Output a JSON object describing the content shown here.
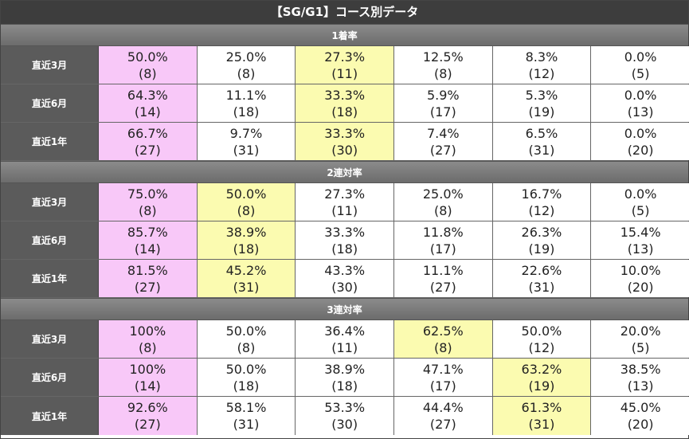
{
  "title": "【SG/G1】コース別データ",
  "sections": [
    {
      "header": "1着率",
      "rows": [
        {
          "label": "直近3月",
          "cells": [
            {
              "pct": "50.0%",
              "n": "(8)",
              "hl": "pink"
            },
            {
              "pct": "25.0%",
              "n": "(8)",
              "hl": ""
            },
            {
              "pct": "27.3%",
              "n": "(11)",
              "hl": "yellow"
            },
            {
              "pct": "12.5%",
              "n": "(8)",
              "hl": ""
            },
            {
              "pct": "8.3%",
              "n": "(12)",
              "hl": ""
            },
            {
              "pct": "0.0%",
              "n": "(5)",
              "hl": ""
            }
          ]
        },
        {
          "label": "直近6月",
          "cells": [
            {
              "pct": "64.3%",
              "n": "(14)",
              "hl": "pink"
            },
            {
              "pct": "11.1%",
              "n": "(18)",
              "hl": ""
            },
            {
              "pct": "33.3%",
              "n": "(18)",
              "hl": "yellow"
            },
            {
              "pct": "5.9%",
              "n": "(17)",
              "hl": ""
            },
            {
              "pct": "5.3%",
              "n": "(19)",
              "hl": ""
            },
            {
              "pct": "0.0%",
              "n": "(13)",
              "hl": ""
            }
          ]
        },
        {
          "label": "直近1年",
          "cells": [
            {
              "pct": "66.7%",
              "n": "(27)",
              "hl": "pink"
            },
            {
              "pct": "9.7%",
              "n": "(31)",
              "hl": ""
            },
            {
              "pct": "33.3%",
              "n": "(30)",
              "hl": "yellow"
            },
            {
              "pct": "7.4%",
              "n": "(27)",
              "hl": ""
            },
            {
              "pct": "6.5%",
              "n": "(31)",
              "hl": ""
            },
            {
              "pct": "0.0%",
              "n": "(20)",
              "hl": ""
            }
          ]
        }
      ]
    },
    {
      "header": "2連対率",
      "rows": [
        {
          "label": "直近3月",
          "cells": [
            {
              "pct": "75.0%",
              "n": "(8)",
              "hl": "pink"
            },
            {
              "pct": "50.0%",
              "n": "(8)",
              "hl": "yellow"
            },
            {
              "pct": "27.3%",
              "n": "(11)",
              "hl": ""
            },
            {
              "pct": "25.0%",
              "n": "(8)",
              "hl": ""
            },
            {
              "pct": "16.7%",
              "n": "(12)",
              "hl": ""
            },
            {
              "pct": "0.0%",
              "n": "(5)",
              "hl": ""
            }
          ]
        },
        {
          "label": "直近6月",
          "cells": [
            {
              "pct": "85.7%",
              "n": "(14)",
              "hl": "pink"
            },
            {
              "pct": "38.9%",
              "n": "(18)",
              "hl": "yellow"
            },
            {
              "pct": "33.3%",
              "n": "(18)",
              "hl": ""
            },
            {
              "pct": "11.8%",
              "n": "(17)",
              "hl": ""
            },
            {
              "pct": "26.3%",
              "n": "(19)",
              "hl": ""
            },
            {
              "pct": "15.4%",
              "n": "(13)",
              "hl": ""
            }
          ]
        },
        {
          "label": "直近1年",
          "cells": [
            {
              "pct": "81.5%",
              "n": "(27)",
              "hl": "pink"
            },
            {
              "pct": "45.2%",
              "n": "(31)",
              "hl": "yellow"
            },
            {
              "pct": "43.3%",
              "n": "(30)",
              "hl": ""
            },
            {
              "pct": "11.1%",
              "n": "(27)",
              "hl": ""
            },
            {
              "pct": "22.6%",
              "n": "(31)",
              "hl": ""
            },
            {
              "pct": "10.0%",
              "n": "(20)",
              "hl": ""
            }
          ]
        }
      ]
    },
    {
      "header": "3連対率",
      "rows": [
        {
          "label": "直近3月",
          "cells": [
            {
              "pct": "100%",
              "n": "(8)",
              "hl": "pink"
            },
            {
              "pct": "50.0%",
              "n": "(8)",
              "hl": ""
            },
            {
              "pct": "36.4%",
              "n": "(11)",
              "hl": ""
            },
            {
              "pct": "62.5%",
              "n": "(8)",
              "hl": "yellow"
            },
            {
              "pct": "50.0%",
              "n": "(12)",
              "hl": ""
            },
            {
              "pct": "20.0%",
              "n": "(5)",
              "hl": ""
            }
          ]
        },
        {
          "label": "直近6月",
          "cells": [
            {
              "pct": "100%",
              "n": "(14)",
              "hl": "pink"
            },
            {
              "pct": "50.0%",
              "n": "(18)",
              "hl": ""
            },
            {
              "pct": "38.9%",
              "n": "(18)",
              "hl": ""
            },
            {
              "pct": "47.1%",
              "n": "(17)",
              "hl": ""
            },
            {
              "pct": "63.2%",
              "n": "(19)",
              "hl": "yellow"
            },
            {
              "pct": "38.5%",
              "n": "(13)",
              "hl": ""
            }
          ]
        },
        {
          "label": "直近1年",
          "cells": [
            {
              "pct": "92.6%",
              "n": "(27)",
              "hl": "pink"
            },
            {
              "pct": "58.1%",
              "n": "(31)",
              "hl": ""
            },
            {
              "pct": "53.3%",
              "n": "(30)",
              "hl": ""
            },
            {
              "pct": "44.4%",
              "n": "(27)",
              "hl": ""
            },
            {
              "pct": "61.3%",
              "n": "(31)",
              "hl": "yellow"
            },
            {
              "pct": "45.0%",
              "n": "(20)",
              "hl": ""
            }
          ]
        }
      ]
    }
  ],
  "colors": {
    "pink": "#f8c8f8",
    "yellow": "#fbfbb0",
    "title_bg": "#3d3d3d",
    "label_bg": "#5b5b5b"
  }
}
